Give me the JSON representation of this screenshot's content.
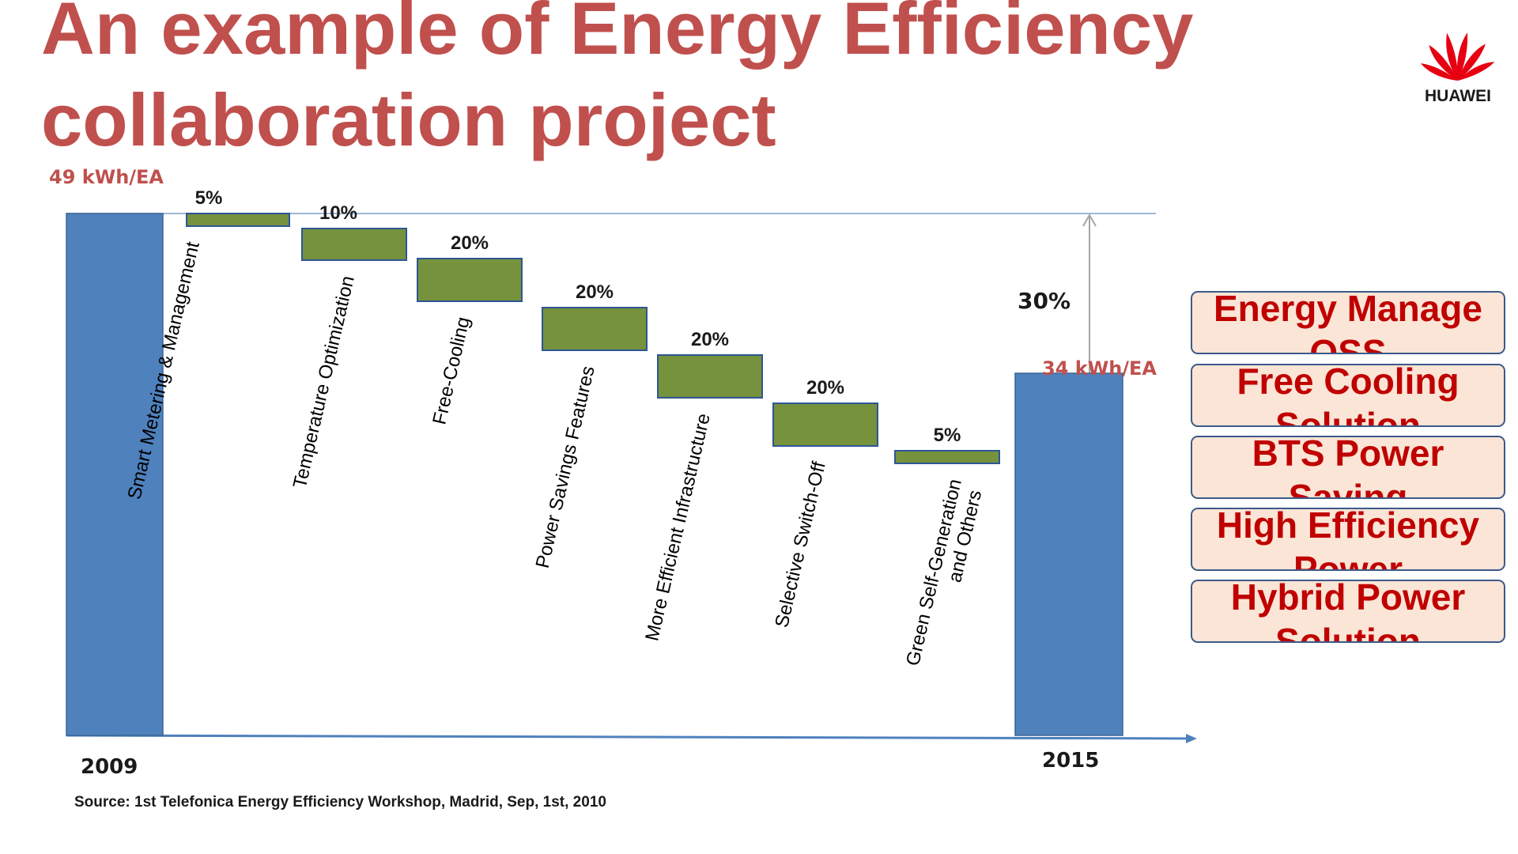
{
  "slide": {
    "title": "An example of Energy Efficiency collaboration project",
    "logo_text": "HUAWEI",
    "source": "Source:  1st Telefonica Energy Efficiency Workshop, Madrid, Sep, 1st, 2010"
  },
  "solutions": [
    "Energy Manage OSS",
    "Free Cooling Solution",
    "BTS  Power Saving",
    "High Efficiency Power",
    "Hybrid Power Solution"
  ],
  "colors": {
    "title": "#c0504d",
    "total_bar": "#4f81bd",
    "step_bar": "#76923c",
    "solution_fill": "#fbe5d6",
    "solution_text": "#c00000",
    "kwh_label": "#c0504d"
  },
  "chart_data": {
    "type": "bar",
    "subtype": "waterfall",
    "start": {
      "label": "2009",
      "value": 49,
      "value_label": "49 kWh/EA"
    },
    "end": {
      "label": "2015",
      "value": 34,
      "value_label": "34 kWh/EA"
    },
    "steps": [
      {
        "category": "Smart Metering & Management",
        "share_label": "5%",
        "share": 5
      },
      {
        "category": "Temperature Optimization",
        "share_label": "10%",
        "share": 10
      },
      {
        "category": "Free-Cooling",
        "share_label": "20%",
        "share": 20
      },
      {
        "category": "Power Savings Features",
        "share_label": "20%",
        "share": 20
      },
      {
        "category": "More Efficient Infrastructure",
        "share_label": "20%",
        "share": 20
      },
      {
        "category": "Selective Switch-Off",
        "share_label": "20%",
        "share": 20
      },
      {
        "category": "Green Self-Generation and Others",
        "share_label": "5%",
        "share": 5
      }
    ],
    "total_reduction_label": "30%",
    "total_reduction": 30
  }
}
